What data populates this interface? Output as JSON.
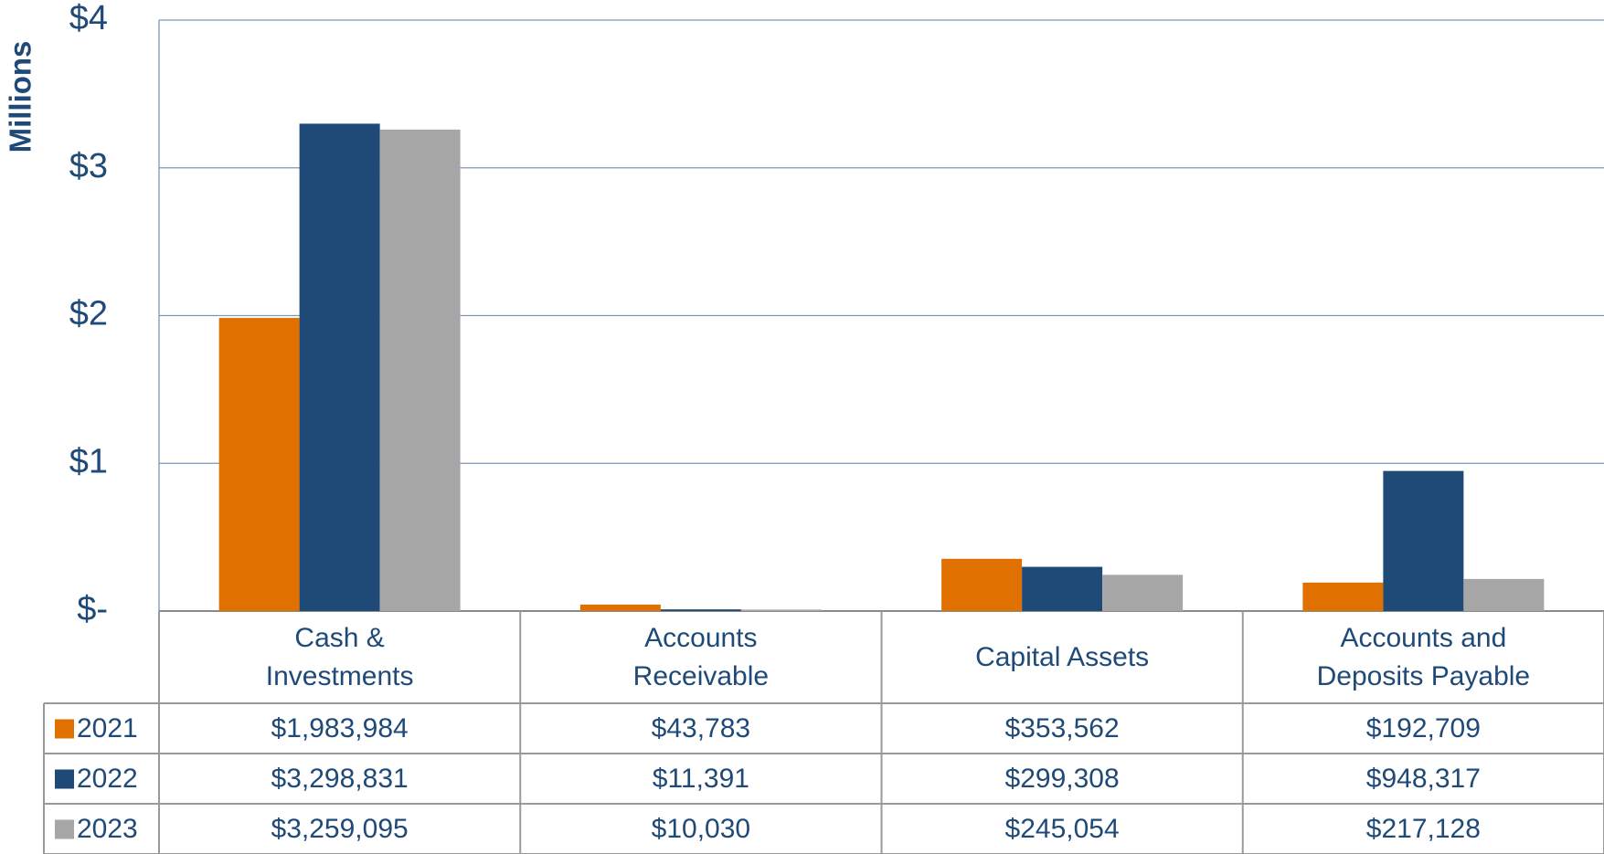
{
  "chart_data": {
    "type": "bar",
    "y_axis_label": "Millions",
    "categories": [
      "Cash &\nInvestments",
      "Accounts\nReceivable",
      "Capital Assets",
      "Accounts and\nDeposits Payable"
    ],
    "series": [
      {
        "name": "2021",
        "color": "#e07000",
        "values": [
          1.983984,
          0.043783,
          0.353562,
          0.192709
        ],
        "value_labels": [
          "$1,983,984",
          "$43,783",
          "$353,562",
          "$192,709"
        ]
      },
      {
        "name": "2022",
        "color": "#1f4a78",
        "values": [
          3.298831,
          0.011391,
          0.299308,
          0.948317
        ],
        "value_labels": [
          "$3,298,831",
          "$11,391",
          "$299,308",
          "$948,317"
        ]
      },
      {
        "name": "2023",
        "color": "#a6a6a6",
        "values": [
          3.259095,
          0.01003,
          0.245054,
          0.217128
        ],
        "value_labels": [
          "$3,259,095",
          "$10,030",
          "$245,054",
          "$217,128"
        ]
      }
    ],
    "ylim": [
      0,
      4
    ],
    "yticks": [
      {
        "value": 0,
        "label": "$-"
      },
      {
        "value": 1,
        "label": "$1"
      },
      {
        "value": 2,
        "label": "$2"
      },
      {
        "value": 3,
        "label": "$3"
      },
      {
        "value": 4,
        "label": "$4"
      }
    ],
    "grid": true
  }
}
